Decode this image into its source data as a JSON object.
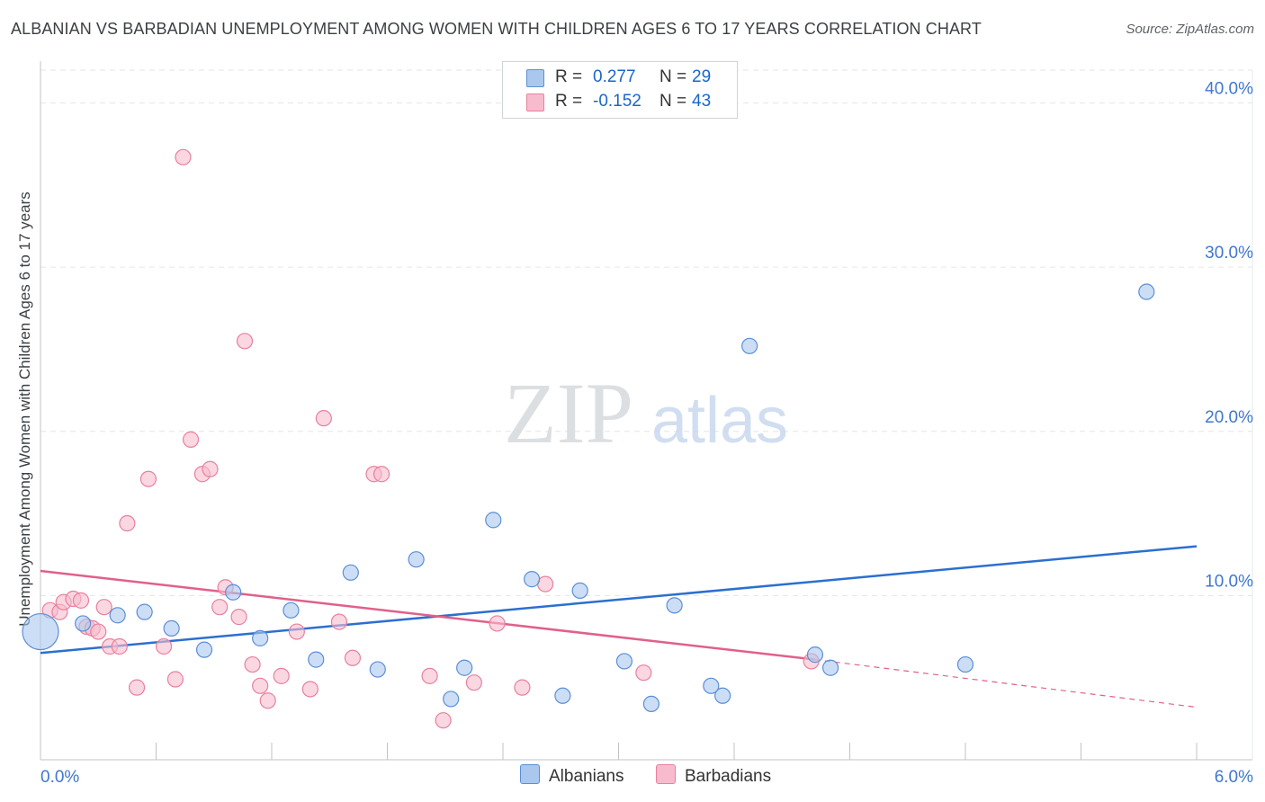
{
  "title": "ALBANIAN VS BARBADIAN UNEMPLOYMENT AMONG WOMEN WITH CHILDREN AGES 6 TO 17 YEARS CORRELATION CHART",
  "source": "Source: ZipAtlas.com",
  "watermark": {
    "zip": "ZIP",
    "atlas": "atlas"
  },
  "legend": {
    "albanians": {
      "r_label": "R =",
      "r_value": "0.277",
      "n_label": "N =",
      "n_value": "29"
    },
    "barbadians": {
      "r_label": "R =",
      "r_value": "-0.152",
      "n_label": "N =",
      "n_value": "43"
    }
  },
  "bottom_legend": {
    "albanians": "Albanians",
    "barbadians": "Barbadians"
  },
  "colors": {
    "albanians_fill": "#aac8ee",
    "albanians_stroke": "#5b8fd6",
    "albanians_line": "#2b6fd0",
    "barbadians_fill": "#f6bccd",
    "barbadians_stroke": "#e8809f",
    "barbadians_line": "#e0608a",
    "tick_label": "#3f77d1",
    "grid": "#e3e6ea"
  },
  "chart_data": {
    "type": "scatter",
    "title": "ALBANIAN VS BARBADIAN UNEMPLOYMENT AMONG WOMEN WITH CHILDREN AGES 6 TO 17 YEARS CORRELATION CHART",
    "xlabel": "",
    "ylabel": "Unemployment Among Women with Children Ages 6 to 17 years",
    "xlim": [
      0,
      6.0
    ],
    "ylim": [
      0,
      42
    ],
    "x_tick_labels": [
      "0.0%",
      "6.0%"
    ],
    "y_ticks": [
      10,
      20,
      30,
      40
    ],
    "y_tick_labels": [
      "10.0%",
      "20.0%",
      "30.0%",
      "40.0%"
    ],
    "grid": true,
    "series": [
      {
        "name": "Albanians",
        "points": [
          {
            "x": 0.0,
            "y": 7.8,
            "big": true
          },
          {
            "x": 0.22,
            "y": 8.3
          },
          {
            "x": 0.4,
            "y": 8.8
          },
          {
            "x": 0.54,
            "y": 9.0
          },
          {
            "x": 0.68,
            "y": 8.0
          },
          {
            "x": 0.85,
            "y": 6.7
          },
          {
            "x": 1.0,
            "y": 10.2
          },
          {
            "x": 1.14,
            "y": 7.4
          },
          {
            "x": 1.3,
            "y": 9.1
          },
          {
            "x": 1.43,
            "y": 6.1
          },
          {
            "x": 1.61,
            "y": 11.4
          },
          {
            "x": 1.75,
            "y": 5.5
          },
          {
            "x": 1.95,
            "y": 12.2
          },
          {
            "x": 2.13,
            "y": 3.7
          },
          {
            "x": 2.2,
            "y": 5.6
          },
          {
            "x": 2.35,
            "y": 14.6
          },
          {
            "x": 2.55,
            "y": 11.0
          },
          {
            "x": 2.71,
            "y": 3.9
          },
          {
            "x": 2.8,
            "y": 10.3
          },
          {
            "x": 3.03,
            "y": 6.0
          },
          {
            "x": 3.17,
            "y": 3.4
          },
          {
            "x": 3.29,
            "y": 9.4
          },
          {
            "x": 3.48,
            "y": 4.5
          },
          {
            "x": 3.54,
            "y": 3.9
          },
          {
            "x": 3.68,
            "y": 25.2
          },
          {
            "x": 4.02,
            "y": 6.4
          },
          {
            "x": 4.1,
            "y": 5.6
          },
          {
            "x": 4.8,
            "y": 5.8
          },
          {
            "x": 5.74,
            "y": 28.5
          }
        ],
        "trend": {
          "x1": 0.0,
          "y1": 6.5,
          "x2": 6.0,
          "y2": 13.0
        }
      },
      {
        "name": "Barbadians",
        "points": [
          {
            "x": 0.05,
            "y": 9.1
          },
          {
            "x": 0.1,
            "y": 9.0
          },
          {
            "x": 0.12,
            "y": 9.6
          },
          {
            "x": 0.17,
            "y": 9.8
          },
          {
            "x": 0.21,
            "y": 9.7
          },
          {
            "x": 0.24,
            "y": 8.1
          },
          {
            "x": 0.27,
            "y": 8.0
          },
          {
            "x": 0.3,
            "y": 7.8
          },
          {
            "x": 0.33,
            "y": 9.3
          },
          {
            "x": 0.36,
            "y": 6.9
          },
          {
            "x": 0.41,
            "y": 6.9
          },
          {
            "x": 0.45,
            "y": 14.4
          },
          {
            "x": 0.5,
            "y": 4.4
          },
          {
            "x": 0.56,
            "y": 17.1
          },
          {
            "x": 0.64,
            "y": 6.9
          },
          {
            "x": 0.7,
            "y": 4.9
          },
          {
            "x": 0.74,
            "y": 36.7
          },
          {
            "x": 0.78,
            "y": 19.5
          },
          {
            "x": 0.84,
            "y": 17.4
          },
          {
            "x": 0.88,
            "y": 17.7
          },
          {
            "x": 0.93,
            "y": 9.3
          },
          {
            "x": 0.96,
            "y": 10.5
          },
          {
            "x": 1.03,
            "y": 8.7
          },
          {
            "x": 1.06,
            "y": 25.5
          },
          {
            "x": 1.1,
            "y": 5.8
          },
          {
            "x": 1.14,
            "y": 4.5
          },
          {
            "x": 1.18,
            "y": 3.6
          },
          {
            "x": 1.25,
            "y": 5.1
          },
          {
            "x": 1.33,
            "y": 7.8
          },
          {
            "x": 1.4,
            "y": 4.3
          },
          {
            "x": 1.47,
            "y": 20.8
          },
          {
            "x": 1.55,
            "y": 8.4
          },
          {
            "x": 1.62,
            "y": 6.2
          },
          {
            "x": 1.73,
            "y": 17.4
          },
          {
            "x": 1.77,
            "y": 17.4
          },
          {
            "x": 2.02,
            "y": 5.1
          },
          {
            "x": 2.09,
            "y": 2.4
          },
          {
            "x": 2.25,
            "y": 4.7
          },
          {
            "x": 2.37,
            "y": 8.3
          },
          {
            "x": 2.5,
            "y": 4.4
          },
          {
            "x": 2.62,
            "y": 10.7
          },
          {
            "x": 3.13,
            "y": 5.3
          },
          {
            "x": 4.0,
            "y": 6.0
          }
        ],
        "trend": {
          "x1": 0.0,
          "y1": 11.5,
          "x2": 4.02,
          "y2": 6.1,
          "dash_to_x": 6.0,
          "dash_to_y": 3.2
        }
      }
    ]
  }
}
